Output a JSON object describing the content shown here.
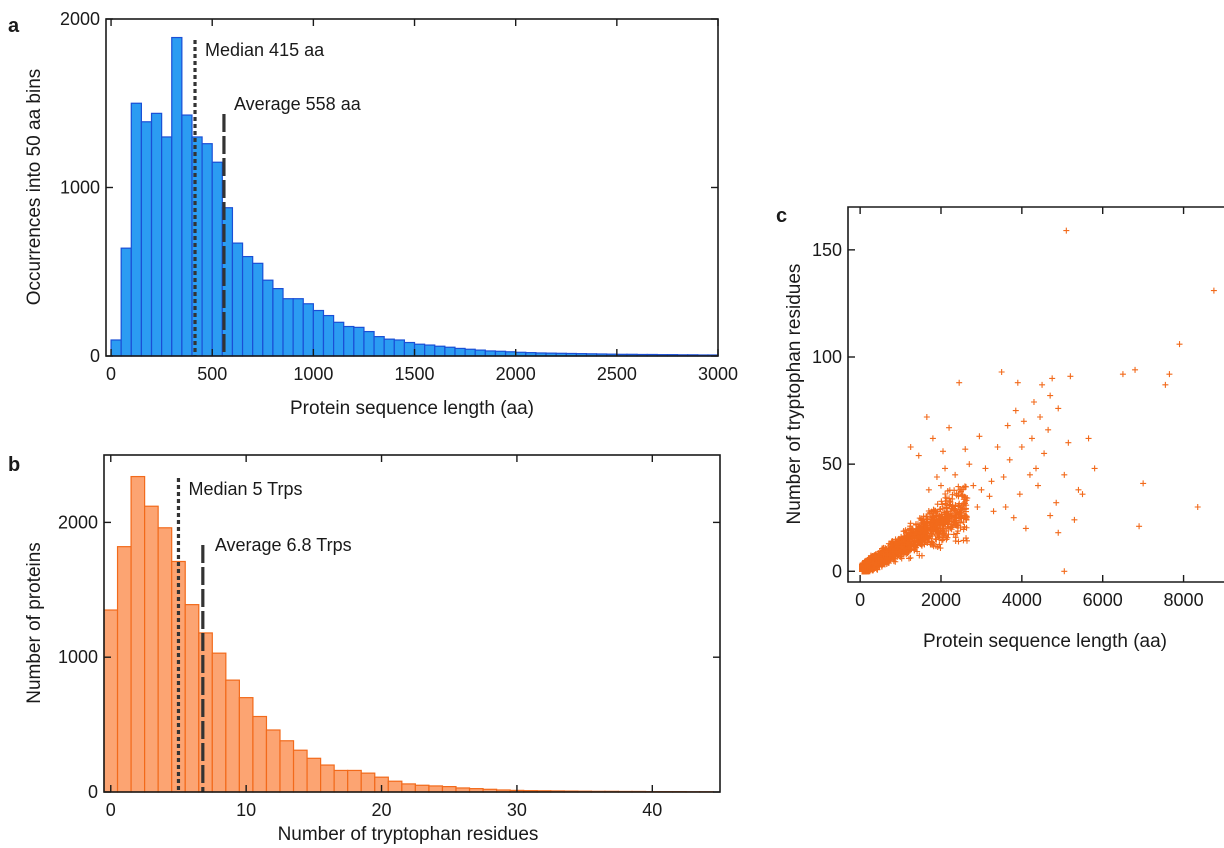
{
  "chart_data": [
    {
      "panel": "a",
      "type": "bar",
      "xlabel": "Protein sequence length (aa)",
      "ylabel": "Occurrences into 50 aa bins",
      "xlim": [
        -25,
        3000
      ],
      "ylim": [
        0,
        2000
      ],
      "xticks": [
        0,
        500,
        1000,
        1500,
        2000,
        2500,
        3000
      ],
      "yticks": [
        0,
        1000,
        2000
      ],
      "bin_width": 50,
      "bin_starts": [
        0,
        50,
        100,
        150,
        200,
        250,
        300,
        350,
        400,
        450,
        500,
        550,
        600,
        650,
        700,
        750,
        800,
        850,
        900,
        950,
        1000,
        1050,
        1100,
        1150,
        1200,
        1250,
        1300,
        1350,
        1400,
        1450,
        1500,
        1550,
        1600,
        1650,
        1700,
        1750,
        1800,
        1850,
        1900,
        1950,
        2000,
        2050,
        2100,
        2150,
        2200,
        2250,
        2300,
        2350,
        2400,
        2450,
        2500,
        2550,
        2600,
        2650,
        2700,
        2750,
        2800,
        2850,
        2900,
        2950
      ],
      "values": [
        95,
        640,
        1500,
        1390,
        1440,
        1300,
        1890,
        1430,
        1300,
        1260,
        1150,
        880,
        670,
        590,
        550,
        450,
        400,
        340,
        340,
        310,
        270,
        240,
        200,
        175,
        170,
        145,
        115,
        100,
        95,
        80,
        70,
        65,
        58,
        52,
        45,
        40,
        35,
        30,
        28,
        25,
        22,
        20,
        18,
        17,
        16,
        15,
        14,
        13,
        12,
        11,
        10,
        10,
        9,
        9,
        8,
        8,
        7,
        7,
        6,
        6
      ],
      "color": "#2b9cf2",
      "edge_color": "#1a4fd6",
      "annotations": [
        {
          "label": "Median 415 aa",
          "x": 415,
          "style": "dotted"
        },
        {
          "label": "Average 558 aa",
          "x": 558,
          "style": "dashed"
        }
      ],
      "grid": false,
      "legend": "none"
    },
    {
      "panel": "b",
      "type": "bar",
      "xlabel": "Number of tryptophan residues",
      "ylabel": "Number of proteins",
      "xlim": [
        -0.5,
        45
      ],
      "ylim": [
        0,
        2500
      ],
      "xticks": [
        0,
        10,
        20,
        30,
        40
      ],
      "yticks": [
        0,
        1000,
        2000
      ],
      "bin_width": 1,
      "bin_starts": [
        0,
        1,
        2,
        3,
        4,
        5,
        6,
        7,
        8,
        9,
        10,
        11,
        12,
        13,
        14,
        15,
        16,
        17,
        18,
        19,
        20,
        21,
        22,
        23,
        24,
        25,
        26,
        27,
        28,
        29,
        30,
        31,
        32,
        33,
        34,
        35,
        36,
        37,
        38,
        39,
        40,
        41,
        42,
        43,
        44
      ],
      "values": [
        1350,
        1820,
        2340,
        2120,
        1960,
        1710,
        1390,
        1180,
        1030,
        830,
        700,
        560,
        460,
        380,
        310,
        250,
        200,
        160,
        160,
        140,
        110,
        80,
        60,
        50,
        45,
        40,
        30,
        25,
        20,
        15,
        12,
        10,
        9,
        8,
        7,
        6,
        5,
        5,
        4,
        4,
        3,
        3,
        3,
        2,
        2
      ],
      "bin_offset": -0.5,
      "color": "#fca472",
      "edge_color": "#f26a1b",
      "annotations": [
        {
          "label": "Median 5 Trps",
          "x": 5,
          "style": "dotted"
        },
        {
          "label": "Average 6.8 Trps",
          "x": 6.8,
          "style": "dashed"
        }
      ],
      "grid": false,
      "legend": "none"
    },
    {
      "panel": "c",
      "type": "scatter",
      "xlabel": "Protein sequence length (aa)",
      "ylabel": "Number of tryptophan residues",
      "xlim": [
        -300,
        9000
      ],
      "ylim": [
        -5,
        170
      ],
      "xticks": [
        0,
        2000,
        4000,
        6000,
        8000
      ],
      "yticks": [
        0,
        50,
        100,
        150
      ],
      "marker": "+",
      "color": "#f26a1b",
      "points": [
        [
          5100,
          159
        ],
        [
          8750,
          131
        ],
        [
          7900,
          106
        ],
        [
          6800,
          94
        ],
        [
          6500,
          92
        ],
        [
          7550,
          87
        ],
        [
          7650,
          92
        ],
        [
          8350,
          30
        ],
        [
          7000,
          41
        ],
        [
          6900,
          21
        ],
        [
          5200,
          91
        ],
        [
          4750,
          90
        ],
        [
          4500,
          87
        ],
        [
          4700,
          82
        ],
        [
          4900,
          76
        ],
        [
          4300,
          79
        ],
        [
          4050,
          70
        ],
        [
          4650,
          66
        ],
        [
          5150,
          60
        ],
        [
          5800,
          48
        ],
        [
          5500,
          36
        ],
        [
          5300,
          24
        ],
        [
          4900,
          18
        ],
        [
          4700,
          26
        ],
        [
          5050,
          0
        ],
        [
          3500,
          93
        ],
        [
          2450,
          88
        ],
        [
          3850,
          75
        ],
        [
          3400,
          58
        ],
        [
          3100,
          48
        ],
        [
          3700,
          52
        ],
        [
          4200,
          45
        ],
        [
          3950,
          36
        ],
        [
          3600,
          30
        ],
        [
          4400,
          40
        ],
        [
          4100,
          20
        ],
        [
          3300,
          28
        ],
        [
          2950,
          63
        ],
        [
          2600,
          57
        ],
        [
          2200,
          67
        ],
        [
          1800,
          62
        ],
        [
          1650,
          72
        ],
        [
          3000,
          38
        ],
        [
          3800,
          25
        ],
        [
          4550,
          55
        ],
        [
          4350,
          48
        ],
        [
          5050,
          45
        ],
        [
          5400,
          38
        ],
        [
          4850,
          32
        ],
        [
          4250,
          62
        ],
        [
          3550,
          44
        ],
        [
          3200,
          35
        ],
        [
          2800,
          40
        ],
        [
          2700,
          50
        ],
        [
          2350,
          45
        ],
        [
          1250,
          58
        ],
        [
          1450,
          54
        ],
        [
          2050,
          56
        ],
        [
          3650,
          68
        ],
        [
          5650,
          62
        ],
        [
          4000,
          58
        ],
        [
          4450,
          72
        ],
        [
          3900,
          88
        ],
        [
          3250,
          42
        ],
        [
          2900,
          30
        ],
        [
          2500,
          38
        ],
        [
          2100,
          48
        ],
        [
          2000,
          40
        ],
        [
          1900,
          44
        ],
        [
          1700,
          38
        ]
      ],
      "density_note": "dense cluster of points below 2500 aa and 40 residues",
      "grid": false,
      "legend": "none"
    }
  ]
}
